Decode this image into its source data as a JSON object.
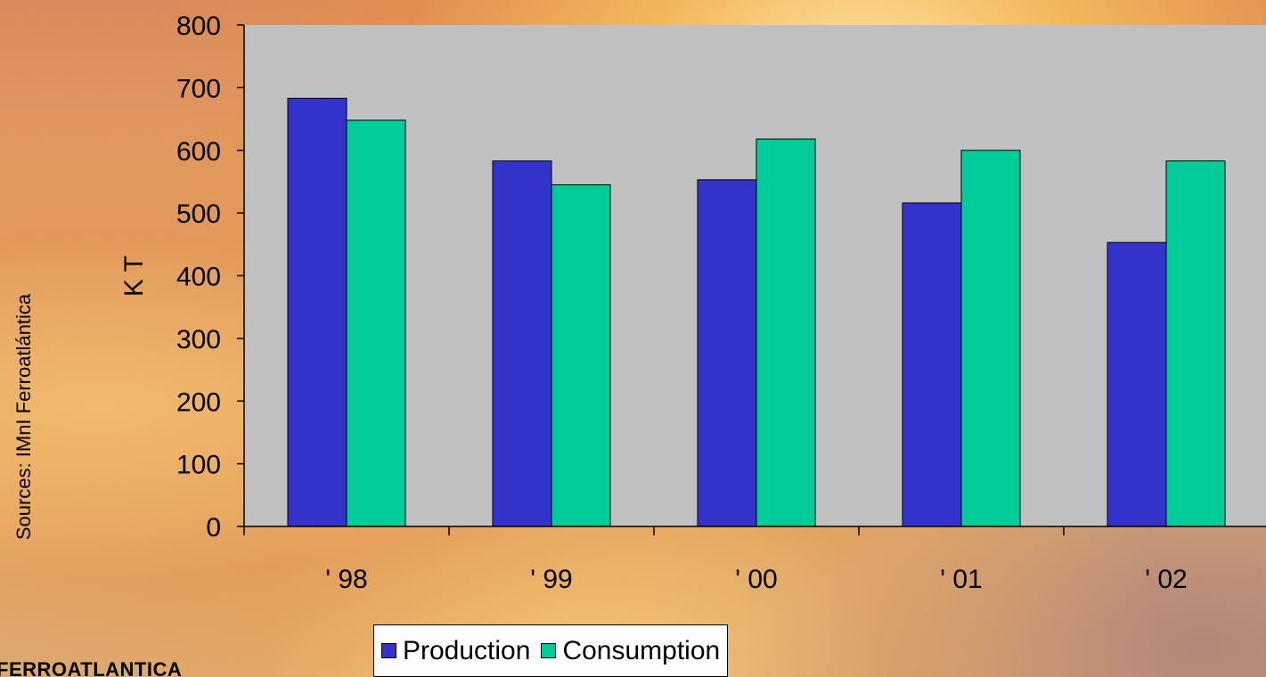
{
  "source_note": "Sources: IMnI Ferroatlántica",
  "logo": "FERROATLANTICA",
  "colors": {
    "plot_background": "#c0c0c0",
    "production": "#3333cc",
    "consumption": "#00cc99"
  },
  "chart_data": {
    "type": "bar",
    "categories": [
      "' 98",
      "' 99",
      "' 00",
      "' 01",
      "' 02"
    ],
    "series": [
      {
        "name": "Production",
        "values": [
          683,
          583,
          553,
          516,
          453
        ]
      },
      {
        "name": "Consumption",
        "values": [
          648,
          545,
          618,
          600,
          583
        ]
      }
    ],
    "ylabel": "K T",
    "ylim": [
      0,
      800
    ],
    "yticks": [
      0,
      100,
      200,
      300,
      400,
      500,
      600,
      700,
      800
    ],
    "legend_position": "bottom",
    "grid": false
  }
}
